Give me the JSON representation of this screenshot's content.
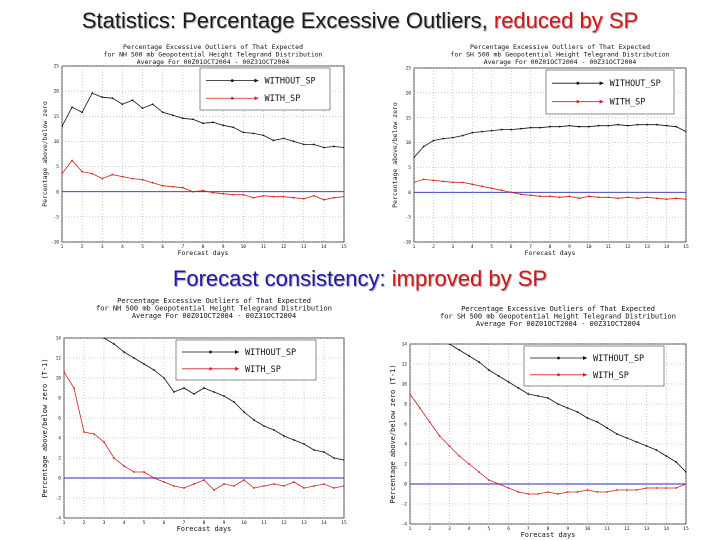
{
  "headings": {
    "top": {
      "part1": "Statistics: Percentage Excessive Outliers, ",
      "part2": "reduced by SP"
    },
    "middle": {
      "part1": "Forecast consistency: ",
      "part2": "improved by SP"
    }
  },
  "colors": {
    "heading_text": "#1a1a1a",
    "heading_blue": "#1a1aa6",
    "heading_red": "#d01818",
    "without_sp": "#111111",
    "with_sp": "#d42020",
    "zero_line": "#2a2ab8",
    "grid": "#9a9a9a"
  },
  "chart_data": [
    {
      "type": "line",
      "title_lines": [
        "Percentage Excessive Outliers of That Expected",
        "for NH 500 mb Geopotential Height Telegrand Distribution",
        "Average For 00Z01OCT2004 - 00Z31OCT2004"
      ],
      "xlabel": "Forecast days",
      "ylabel": "Percentage above/below zero",
      "ylim": [
        -10,
        25
      ],
      "xlim": [
        1,
        15
      ],
      "yticks": [
        -10,
        -5,
        0,
        5,
        10,
        15,
        20,
        25
      ],
      "xticks": [
        1,
        2,
        3,
        4,
        5,
        6,
        7,
        8,
        9,
        10,
        11,
        12,
        13,
        14,
        15
      ],
      "grid": true,
      "legend": "top-right",
      "series": [
        {
          "name": "WITHOUT_SP",
          "color": "#111111",
          "x": [
            1,
            1.5,
            2,
            2.5,
            3,
            3.5,
            4,
            4.5,
            5,
            5.5,
            6,
            6.5,
            7,
            7.5,
            8,
            8.5,
            9,
            9.5,
            10,
            10.5,
            11,
            11.5,
            12,
            12.5,
            13,
            13.5,
            14,
            14.5,
            15
          ],
          "values": [
            13,
            16.8,
            15.8,
            19.6,
            18.8,
            18.6,
            17.4,
            18.2,
            16.6,
            17.4,
            15.8,
            15.2,
            14.6,
            14.4,
            13.6,
            13.8,
            13.2,
            12.8,
            11.8,
            11.6,
            11.2,
            10.2,
            10.6,
            10.0,
            9.4,
            9.4,
            8.8,
            9.0,
            8.8
          ]
        },
        {
          "name": "WITH_SP",
          "color": "#d42020",
          "x": [
            1,
            1.5,
            2,
            2.5,
            3,
            3.5,
            4,
            4.5,
            5,
            5.5,
            6,
            6.5,
            7,
            7.5,
            8,
            8.5,
            9,
            9.5,
            10,
            10.5,
            11,
            11.5,
            12,
            12.5,
            13,
            13.5,
            14,
            14.5,
            15
          ],
          "values": [
            3.6,
            6.2,
            4.0,
            3.6,
            2.6,
            3.4,
            3.0,
            2.6,
            2.4,
            1.8,
            1.2,
            1.0,
            0.8,
            0.0,
            0.2,
            -0.2,
            -0.4,
            -0.6,
            -0.6,
            -1.2,
            -0.8,
            -1.0,
            -1.0,
            -1.2,
            -1.4,
            -0.8,
            -1.6,
            -1.2,
            -1.0
          ]
        }
      ]
    },
    {
      "type": "line",
      "title_lines": [
        "Percentage Excessive Outliers of That Expected",
        "for SH 500 mb Geopotential Height Telegrand Distribution",
        "Average For 00Z01OCT2004 - 00Z31OCT2004"
      ],
      "xlabel": "Forecast days",
      "ylabel": "Percentage above/below zero",
      "ylim": [
        -10,
        25
      ],
      "xlim": [
        1,
        15
      ],
      "yticks": [
        -10,
        -5,
        0,
        5,
        10,
        15,
        20,
        25
      ],
      "xticks": [
        1,
        2,
        3,
        4,
        5,
        6,
        7,
        8,
        9,
        10,
        11,
        12,
        13,
        14,
        15
      ],
      "grid": true,
      "legend": "top-right",
      "series": [
        {
          "name": "WITHOUT_SP",
          "color": "#111111",
          "x": [
            1,
            1.5,
            2,
            2.5,
            3,
            3.5,
            4,
            4.5,
            5,
            5.5,
            6,
            6.5,
            7,
            7.5,
            8,
            8.5,
            9,
            9.5,
            10,
            10.5,
            11,
            11.5,
            12,
            12.5,
            13,
            13.5,
            14,
            14.5,
            15
          ],
          "values": [
            7.0,
            9.2,
            10.4,
            10.8,
            11.0,
            11.4,
            12.0,
            12.2,
            12.4,
            12.6,
            12.6,
            12.8,
            13.0,
            13.0,
            13.2,
            13.2,
            13.4,
            13.2,
            13.2,
            13.4,
            13.4,
            13.6,
            13.4,
            13.6,
            13.6,
            13.6,
            13.4,
            13.2,
            12.2
          ]
        },
        {
          "name": "WITH_SP",
          "color": "#d42020",
          "x": [
            1,
            1.5,
            2,
            2.5,
            3,
            3.5,
            4,
            4.5,
            5,
            5.5,
            6,
            6.5,
            7,
            7.5,
            8,
            8.5,
            9,
            9.5,
            10,
            10.5,
            11,
            11.5,
            12,
            12.5,
            13,
            13.5,
            14,
            14.5,
            15
          ],
          "values": [
            2.0,
            2.6,
            2.4,
            2.2,
            2.0,
            2.0,
            1.6,
            1.2,
            0.8,
            0.4,
            0.0,
            -0.4,
            -0.6,
            -0.8,
            -0.8,
            -1.0,
            -0.8,
            -1.2,
            -0.8,
            -1.0,
            -1.0,
            -1.2,
            -1.0,
            -1.2,
            -1.0,
            -1.2,
            -1.4,
            -1.2,
            -1.4
          ]
        }
      ]
    },
    {
      "type": "line",
      "title_lines": [
        "Percentage Excessive Outliers of That Expected",
        "for NH 500 mb Geopotential Height Telegrand Distribution",
        "Average For 00Z01OCT2004 - 00Z31OCT2004"
      ],
      "xlabel": "Forecast days",
      "ylabel": "Percentage above/below zero (T-1)",
      "ylim": [
        -4,
        14
      ],
      "xlim": [
        1,
        15
      ],
      "yticks": [
        -4,
        -2,
        0,
        2,
        4,
        6,
        8,
        10,
        12,
        14
      ],
      "xticks": [
        1,
        2,
        3,
        4,
        5,
        6,
        7,
        8,
        9,
        10,
        11,
        12,
        13,
        14,
        15
      ],
      "grid": true,
      "legend": "top-right",
      "series": [
        {
          "name": "WITHOUT_SP",
          "color": "#111111",
          "x": [
            3,
            3.5,
            4,
            4.5,
            5,
            5.5,
            6,
            6.5,
            7,
            7.5,
            8,
            8.5,
            9,
            9.5,
            10,
            10.5,
            11,
            11.5,
            12,
            12.5,
            13,
            13.5,
            14,
            14.5,
            15
          ],
          "values": [
            14.0,
            13.4,
            12.6,
            12.0,
            11.4,
            10.8,
            10.0,
            8.6,
            9.0,
            8.4,
            9.0,
            8.6,
            8.2,
            7.6,
            6.6,
            5.8,
            5.2,
            4.8,
            4.2,
            3.8,
            3.4,
            2.8,
            2.6,
            2.0,
            1.8
          ]
        },
        {
          "name": "WITH_SP",
          "color": "#d42020",
          "x": [
            1,
            1.5,
            2,
            2.5,
            3,
            3.5,
            4,
            4.5,
            5,
            5.5,
            6,
            6.5,
            7,
            7.5,
            8,
            8.5,
            9,
            9.5,
            10,
            10.5,
            11,
            11.5,
            12,
            12.5,
            13,
            13.5,
            14,
            14.5,
            15
          ],
          "values": [
            10.6,
            9.0,
            4.6,
            4.4,
            3.6,
            2.0,
            1.2,
            0.6,
            0.6,
            0.0,
            -0.4,
            -0.8,
            -1.0,
            -0.6,
            -0.2,
            -1.2,
            -0.6,
            -0.8,
            -0.2,
            -1.0,
            -0.8,
            -0.6,
            -0.8,
            -0.4,
            -1.0,
            -0.8,
            -0.6,
            -1.0,
            -0.8
          ]
        }
      ]
    },
    {
      "type": "line",
      "title_lines": [
        "Percentage Excessive Outliers of That Expected",
        "for SH 500 mb Geopotential Height Telegrand Distribution",
        "Average For 00Z01OCT2004 - 00Z31OCT2004"
      ],
      "xlabel": "Forecast days",
      "ylabel": "Percentage above/below zero (T-1)",
      "ylim": [
        -4,
        14
      ],
      "xlim": [
        1,
        15
      ],
      "yticks": [
        -4,
        -2,
        0,
        2,
        4,
        6,
        8,
        10,
        12,
        14
      ],
      "xticks": [
        1,
        2,
        3,
        4,
        5,
        6,
        7,
        8,
        9,
        10,
        11,
        12,
        13,
        14,
        15
      ],
      "grid": true,
      "legend": "top-right",
      "series": [
        {
          "name": "WITHOUT_SP",
          "color": "#111111",
          "x": [
            3,
            3.5,
            4,
            4.5,
            5,
            5.5,
            6,
            6.5,
            7,
            7.5,
            8,
            8.5,
            9,
            9.5,
            10,
            10.5,
            11,
            11.5,
            12,
            12.5,
            13,
            13.5,
            14,
            14.5,
            15
          ],
          "values": [
            14.0,
            13.4,
            12.8,
            12.2,
            11.4,
            10.8,
            10.2,
            9.6,
            9.0,
            8.8,
            8.6,
            8.0,
            7.6,
            7.2,
            6.6,
            6.2,
            5.6,
            5.0,
            4.6,
            4.2,
            3.8,
            3.4,
            2.8,
            2.2,
            1.2
          ]
        },
        {
          "name": "WITH_SP",
          "color": "#d42020",
          "x": [
            1,
            1.5,
            2,
            2.5,
            3,
            3.5,
            4,
            4.5,
            5,
            5.5,
            6,
            6.5,
            7,
            7.5,
            8,
            8.5,
            9,
            9.5,
            10,
            10.5,
            11,
            11.5,
            12,
            12.5,
            13,
            13.5,
            14,
            14.5,
            15
          ],
          "values": [
            9.0,
            7.6,
            6.2,
            4.8,
            3.8,
            2.8,
            2.0,
            1.2,
            0.4,
            0.0,
            -0.4,
            -0.8,
            -1.0,
            -1.0,
            -0.8,
            -1.0,
            -0.8,
            -0.8,
            -0.6,
            -0.8,
            -0.8,
            -0.6,
            -0.6,
            -0.6,
            -0.4,
            -0.4,
            -0.4,
            -0.4,
            0.0
          ]
        }
      ]
    }
  ]
}
